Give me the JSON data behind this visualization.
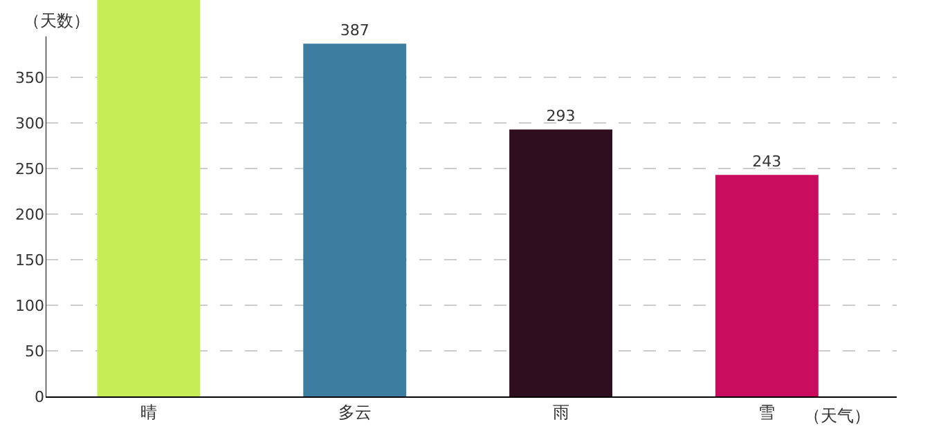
{
  "chart_data": {
    "type": "bar",
    "xlabel": "（天气）",
    "ylabel": "（天数）",
    "categories": [
      "晴",
      "多云",
      "雨",
      "雪"
    ],
    "values": [
      435,
      387,
      293,
      243
    ],
    "colors": [
      "#c6ed55",
      "#3d7da0",
      "#2f0f1f",
      "#c90c5d"
    ],
    "value_labels": [
      null,
      "387",
      "293",
      "243"
    ],
    "ylim": [
      0,
      435
    ],
    "yticks": [
      0,
      50,
      100,
      150,
      200,
      250,
      300,
      350
    ],
    "grid": "y"
  }
}
